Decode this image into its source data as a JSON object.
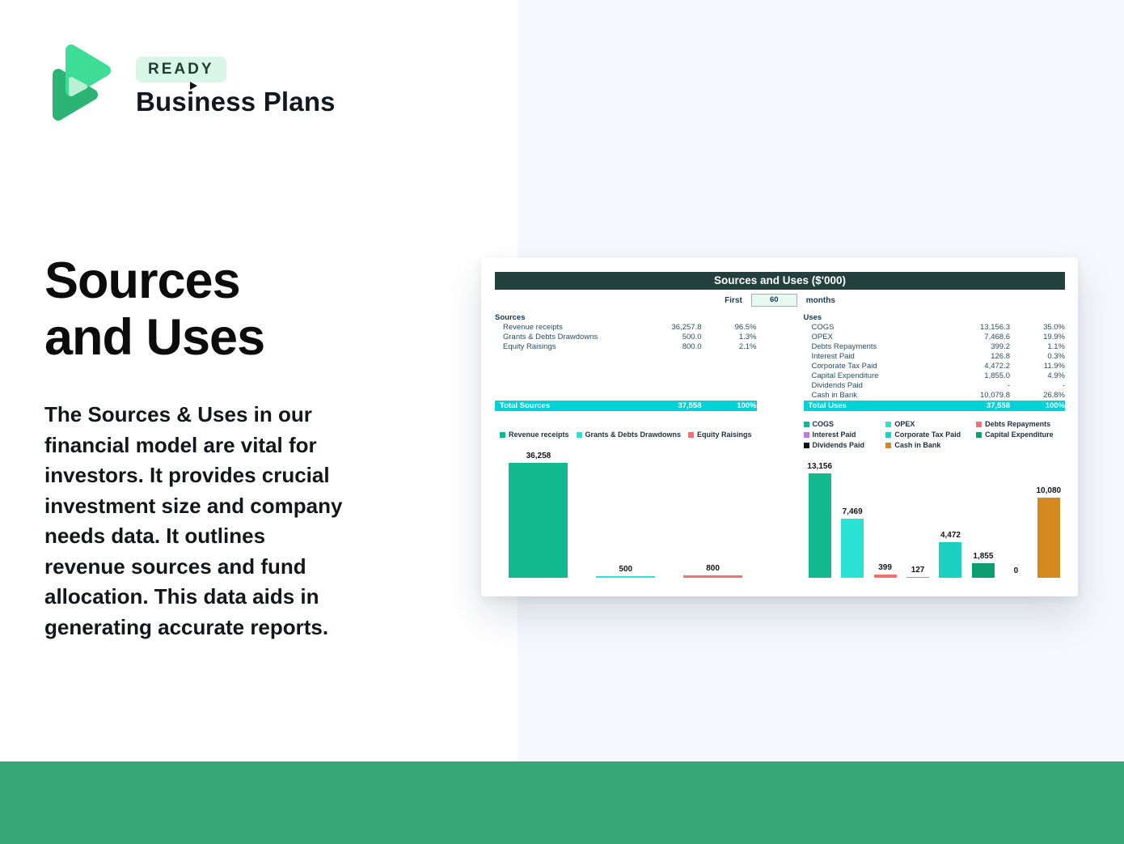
{
  "brand": {
    "badge": "READY",
    "name": "Business Plans",
    "logo_colors": {
      "light_green": "#3ddc97",
      "dark_green": "#2cb475",
      "pale_mint": "#b9efd4"
    }
  },
  "hero": {
    "title": "Sources\nand Uses",
    "description": "The Sources & Uses in our\nfinancial model are vital for\ninvestors. It provides crucial\ninvestment size and company\nneeds data. It outlines\nrevenue sources and fund\nallocation. This data aids in\ngenerating accurate reports."
  },
  "dashboard": {
    "title": "Sources and Uses ($'000)",
    "period": {
      "prefix": "First",
      "value": "60",
      "suffix": "months"
    },
    "sources_table": {
      "header": "Sources",
      "rows": [
        {
          "label": "Revenue receipts",
          "value": "36,257.8",
          "pct": "96.5%"
        },
        {
          "label": "Grants & Debts Drawdowns",
          "value": "500.0",
          "pct": "1.3%"
        },
        {
          "label": "Equity Raisings",
          "value": "800.0",
          "pct": "2.1%"
        }
      ],
      "total": {
        "label": "Total Sources",
        "value": "37,558",
        "pct": "100%"
      }
    },
    "uses_table": {
      "header": "Uses",
      "rows": [
        {
          "label": "COGS",
          "value": "13,156.3",
          "pct": "35.0%"
        },
        {
          "label": "OPEX",
          "value": "7,468.6",
          "pct": "19.9%"
        },
        {
          "label": "Debts Repayments",
          "value": "399.2",
          "pct": "1.1%"
        },
        {
          "label": "Interest Paid",
          "value": "126.8",
          "pct": "0.3%"
        },
        {
          "label": "Corporate Tax Paid",
          "value": "4,472.2",
          "pct": "11.9%"
        },
        {
          "label": "Capital Expenditure",
          "value": "1,855.0",
          "pct": "4.9%"
        },
        {
          "label": "Dividends Paid",
          "value": "-",
          "pct": "-"
        },
        {
          "label": "Cash in Bank",
          "value": "10,079.8",
          "pct": "26.8%"
        }
      ],
      "total": {
        "label": "Total Uses",
        "value": "37,558",
        "pct": "100%"
      }
    }
  },
  "chart_data": [
    {
      "type": "bar",
      "title": "",
      "categories": [
        "Revenue receipts",
        "Grants & Debts Drawdowns",
        "Equity Raisings"
      ],
      "values": [
        36258,
        500,
        800
      ],
      "labels": [
        "36,258",
        "500",
        "800"
      ],
      "colors": [
        "#13b98e",
        "#29e2d4",
        "#f5716d"
      ],
      "ylim": [
        0,
        36258
      ],
      "grid": false,
      "legend_position": "top"
    },
    {
      "type": "bar",
      "title": "",
      "categories": [
        "COGS",
        "OPEX",
        "Debts Repayments",
        "Interest Paid",
        "Corporate Tax Paid",
        "Capital Expenditure",
        "Dividends Paid",
        "Cash in Bank"
      ],
      "values": [
        13156,
        7469,
        399,
        127,
        4472,
        1855,
        0,
        10080
      ],
      "labels": [
        "13,156",
        "7,469",
        "399",
        "127",
        "4,472",
        "1,855",
        "0",
        "10,080"
      ],
      "colors": [
        "#13b98e",
        "#29e2d4",
        "#f5716d",
        "#b57fd8",
        "#1bd0bf",
        "#0b9e71",
        "#111111",
        "#d3891d"
      ],
      "ylim": [
        0,
        13156
      ],
      "grid": false,
      "legend_position": "top"
    }
  ],
  "theme": {
    "footer_green": "#36a878",
    "panel_blue": "#f5f8fc",
    "header_dark": "#24403c",
    "total_cyan": "#00d2d6"
  }
}
